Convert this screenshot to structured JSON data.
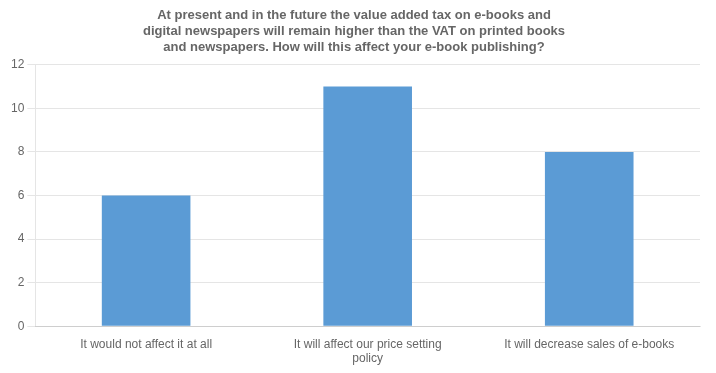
{
  "chart_data": {
    "type": "bar",
    "title": "At present and in the future the value added tax on e-books and\ndigital newspapers will remain higher than the VAT on printed books\nand newspapers. How will this affect your e-book publishing?",
    "categories": [
      "It would not affect it at all",
      "It will affect our price setting\npolicy",
      "It will decrease sales of e-books"
    ],
    "values": [
      6,
      11,
      8
    ],
    "color": "#5B9BD5",
    "ylim": [
      0,
      12
    ],
    "yticks": [
      0,
      2,
      4,
      6,
      8,
      10,
      12
    ],
    "grid": true
  }
}
